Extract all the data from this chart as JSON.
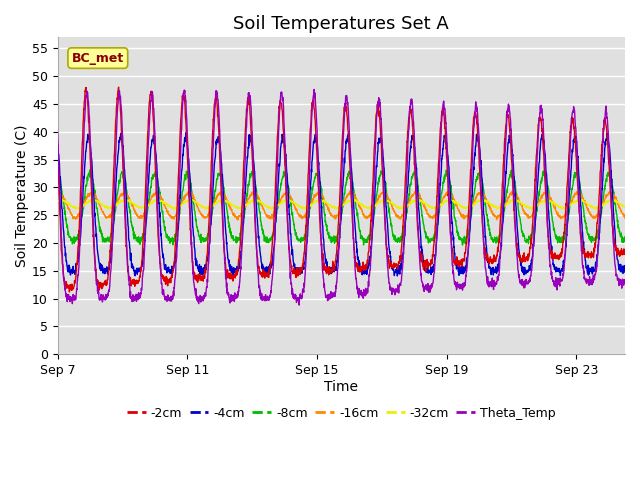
{
  "title": "Soil Temperatures Set A",
  "xlabel": "Time",
  "ylabel": "Soil Temperature (C)",
  "ylim": [
    0,
    57
  ],
  "yticks": [
    0,
    5,
    10,
    15,
    20,
    25,
    30,
    35,
    40,
    45,
    50,
    55
  ],
  "xtick_labels": [
    "Sep 7",
    "Sep 11",
    "Sep 15",
    "Sep 19",
    "Sep 23"
  ],
  "xtick_positions": [
    0,
    4,
    8,
    12,
    16
  ],
  "legend_labels": [
    "-2cm",
    "-4cm",
    "-8cm",
    "-16cm",
    "-32cm",
    "Theta_Temp"
  ],
  "legend_colors": [
    "#dd0000",
    "#0000cc",
    "#00bb00",
    "#ff8800",
    "#eeee00",
    "#9900bb"
  ],
  "annotation_text": "BC_met",
  "annotation_color": "#880000",
  "annotation_bg": "#ffff99",
  "background_plot": "#e0e0e0",
  "background_fig": "#ffffff",
  "grid_color": "#ffffff",
  "title_fontsize": 13,
  "label_fontsize": 10,
  "tick_fontsize": 9,
  "days": 17.5,
  "n_points": 2100
}
